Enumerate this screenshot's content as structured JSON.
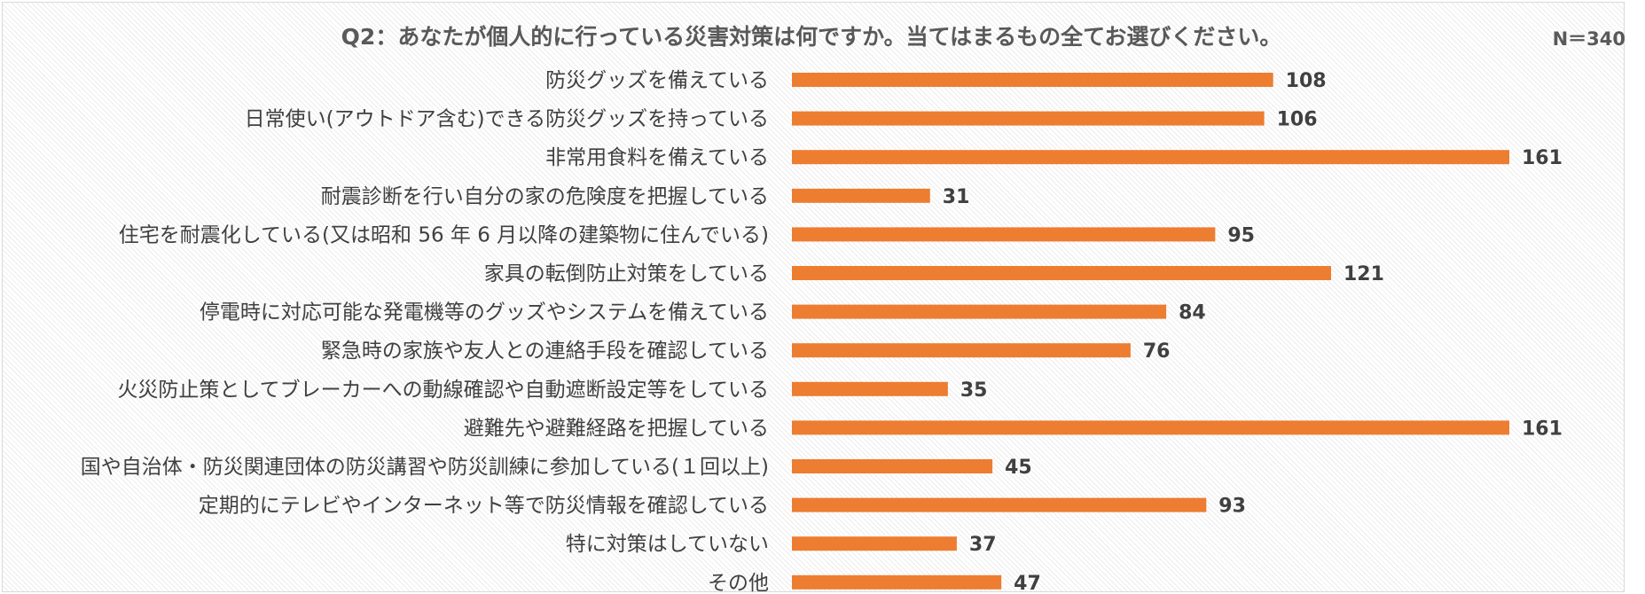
{
  "chart_data": {
    "type": "bar",
    "orientation": "horizontal",
    "title": "Q2：あなたが個人的に行っている災害対策は何ですか。当てはまるもの全てお選びください。",
    "note": "N＝340",
    "categories": [
      "防災グッズを備えている",
      "日常使い(アウトドア含む)できる防災グッズを持っている",
      "非常用食料を備えている",
      "耐震診断を行い自分の家の危険度を把握している",
      "住宅を耐震化している(又は昭和 56 年 6 月以降の建築物に住んでいる)",
      "家具の転倒防止対策をしている",
      "停電時に対応可能な発電機等のグッズやシステムを備えている",
      "緊急時の家族や友人との連絡手段を確認している",
      "火災防止策としてブレーカーへの動線確認や自動遮断設定等をしている",
      "避難先や避難経路を把握している",
      "国や自治体・防災関連団体の防災講習や防災訓練に参加している(１回以上)",
      "定期的にテレビやインターネット等で防災情報を確認している",
      "特に対策はしていない",
      "その他"
    ],
    "values": [
      108,
      106,
      161,
      31,
      95,
      121,
      84,
      76,
      35,
      161,
      45,
      93,
      37,
      47
    ],
    "xlim": [
      0,
      161
    ],
    "grid": false,
    "legend": "none",
    "bar_color": "#ED7D31"
  }
}
